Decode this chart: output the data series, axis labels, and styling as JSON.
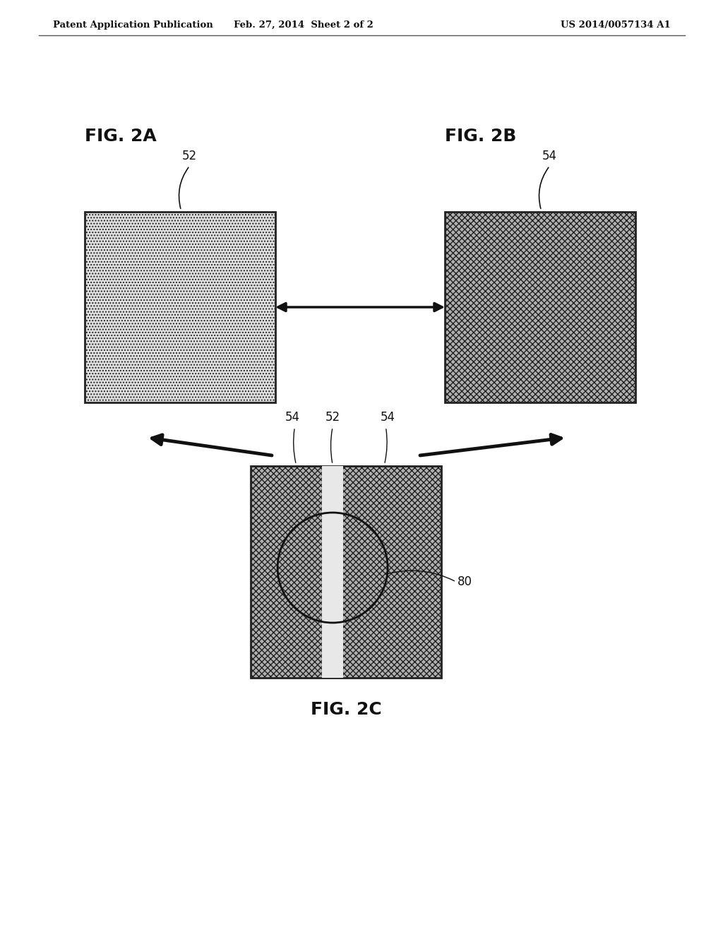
{
  "header_left": "Patent Application Publication",
  "header_mid": "Feb. 27, 2014  Sheet 2 of 2",
  "header_right": "US 2014/0057134 A1",
  "fig2a_label": "FIG. 2A",
  "fig2b_label": "FIG. 2B",
  "fig2c_label": "FIG. 2C",
  "label_52": "52",
  "label_54": "54",
  "label_80": "80",
  "bg_color": "#ffffff",
  "text_color": "#111111",
  "arrow_color": "#111111",
  "box_edge_color": "#333333",
  "fig2a_light_fc": "#d8d8d8",
  "fig2b_dark_fc": "#a0a0a0",
  "fig2c_dark_fc": "#a0a0a0",
  "stripe_fc": "#eeeeee"
}
